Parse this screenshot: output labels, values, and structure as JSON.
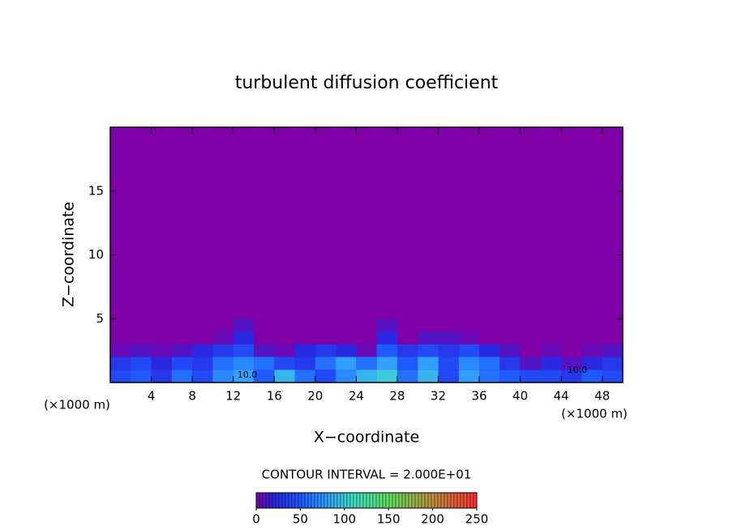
{
  "chart_data": {
    "type": "contour",
    "title": "turbulent diffusion coefficient",
    "xlabel": "X−coordinate",
    "ylabel": "Z−coordinate",
    "x_unit_label": "(×1000 m)",
    "y_unit_label": "(×1000 m)",
    "contour_interval_label": "CONTOUR INTERVAL = 2.000E+01",
    "contour_labels": [
      "10.0",
      "10.0"
    ],
    "xlim": [
      0,
      50
    ],
    "ylim": [
      0,
      20
    ],
    "xticks": [
      4,
      8,
      12,
      16,
      20,
      24,
      28,
      32,
      36,
      40,
      44,
      48
    ],
    "yticks": [
      5,
      10,
      15
    ],
    "x": [
      1,
      3,
      5,
      7,
      9,
      11,
      13,
      15,
      17,
      19,
      21,
      23,
      25,
      27,
      29,
      31,
      33,
      35,
      37,
      39,
      41,
      43,
      45,
      47,
      49
    ],
    "z": [
      0.5,
      1.5,
      2.5,
      3.5,
      4.5
    ],
    "values": [
      [
        40,
        50,
        30,
        60,
        40,
        70,
        80,
        50,
        90,
        60,
        40,
        70,
        90,
        100,
        60,
        90,
        40,
        80,
        60,
        50,
        40,
        40,
        30,
        50,
        40
      ],
      [
        30,
        40,
        20,
        40,
        30,
        60,
        70,
        60,
        40,
        30,
        60,
        80,
        60,
        80,
        50,
        80,
        40,
        70,
        60,
        30,
        10,
        20,
        10,
        20,
        30
      ],
      [
        5,
        10,
        5,
        10,
        20,
        30,
        40,
        10,
        5,
        20,
        30,
        20,
        5,
        50,
        30,
        40,
        30,
        40,
        20,
        10,
        0,
        5,
        0,
        5,
        10
      ],
      [
        0,
        0,
        0,
        0,
        0,
        5,
        20,
        0,
        0,
        0,
        0,
        0,
        0,
        20,
        0,
        10,
        10,
        5,
        0,
        0,
        0,
        0,
        0,
        0,
        0
      ],
      [
        0,
        0,
        0,
        0,
        0,
        0,
        10,
        0,
        0,
        0,
        0,
        0,
        0,
        10,
        0,
        0,
        0,
        0,
        0,
        0,
        0,
        0,
        0,
        0,
        0
      ]
    ],
    "clim": [
      0,
      250
    ],
    "cticks": [
      0,
      50,
      100,
      150,
      200,
      250
    ],
    "colormap": [
      {
        "value": 0,
        "color": "#8000a8"
      },
      {
        "value": 20,
        "color": "#2828e0"
      },
      {
        "value": 50,
        "color": "#1e5aff"
      },
      {
        "value": 80,
        "color": "#32a0ff"
      },
      {
        "value": 110,
        "color": "#40e0c8"
      },
      {
        "value": 150,
        "color": "#60e060"
      },
      {
        "value": 200,
        "color": "#c09040"
      },
      {
        "value": 250,
        "color": "#ff3030"
      }
    ]
  }
}
